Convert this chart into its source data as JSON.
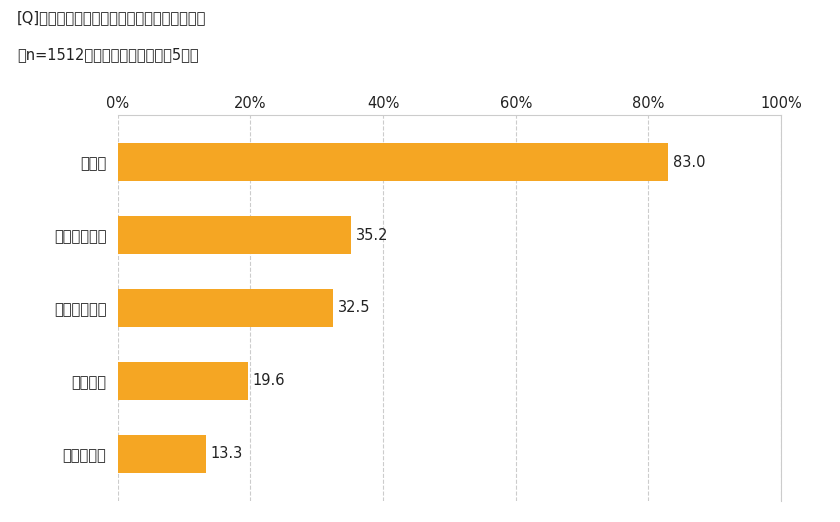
{
  "title_line1": "[Q]どんなタイプのマスクを使っていますか。",
  "title_line2": "（n=1512、複数回答のうち上位5つ）",
  "categories": [
    "不織布",
    "布（手作り）",
    "布（市販品）",
    "ウレタン",
    "布（立体）"
  ],
  "values": [
    83.0,
    35.2,
    32.5,
    19.6,
    13.3
  ],
  "bar_color": "#F5A623",
  "background_color": "#FFFFFF",
  "xlim": [
    0,
    100
  ],
  "xtick_values": [
    0,
    20,
    40,
    60,
    80,
    100
  ],
  "xtick_labels": [
    "0%",
    "20%",
    "40%",
    "60%",
    "80%",
    "100%"
  ],
  "grid_color": "#CCCCCC",
  "label_fontsize": 10.5,
  "value_fontsize": 10.5,
  "title_fontsize": 10.5,
  "bar_height": 0.52
}
